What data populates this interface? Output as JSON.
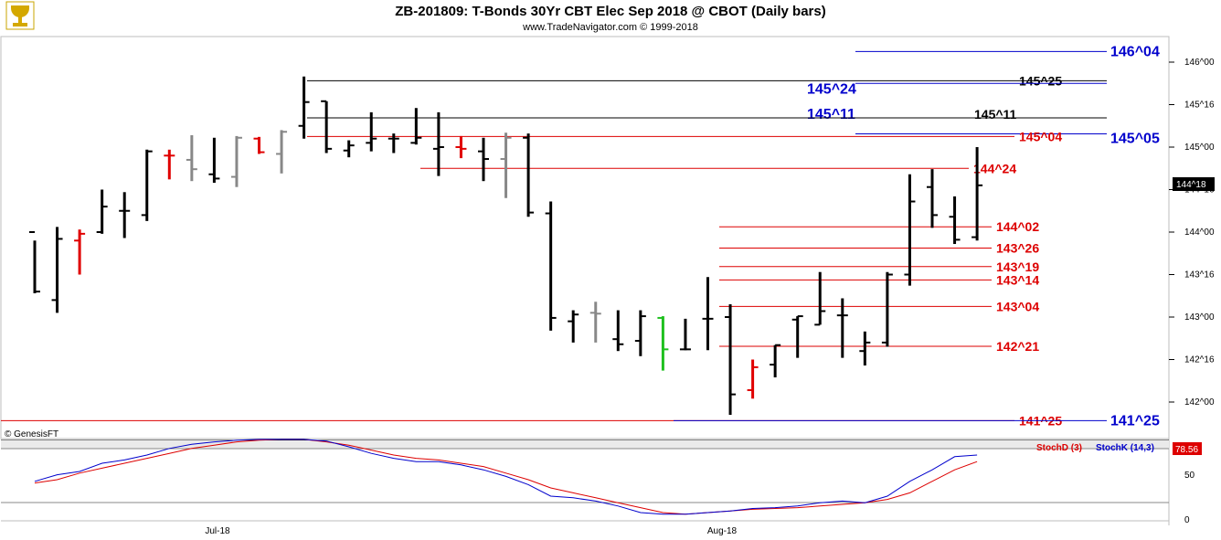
{
  "chart_data": {
    "type": "ohlc",
    "title": "ZB-201809:  T-Bonds 30Yr CBT Elec Sep 2018 @ CBOT  (Daily bars)",
    "subtitle": "www.TradeNavigator.com © 1999-2018",
    "copyright": "© GenesisFT",
    "x_labels": [
      "Jul-18",
      "Aug-18"
    ],
    "y_ticks": [
      "146^00",
      "145^16",
      "145^00",
      "144^16",
      "144^00",
      "143^16",
      "143^00",
      "142^16",
      "142^00"
    ],
    "last_price_label": "144^18",
    "colors": {
      "up": "#000000",
      "down_red": "#e00000",
      "neutral_gray": "#888888",
      "green": "#1fc01f"
    },
    "bars": [
      {
        "h": 143.9,
        "l": 143.28,
        "o": 144.0,
        "c": 143.3,
        "color": "black"
      },
      {
        "h": 144.06,
        "l": 143.05,
        "o": 143.2,
        "c": 143.92,
        "color": "black"
      },
      {
        "h": 144.03,
        "l": 143.5,
        "o": 143.9,
        "c": 143.98,
        "color": "red"
      },
      {
        "h": 144.5,
        "l": 143.98,
        "o": 144.0,
        "c": 144.3,
        "color": "black"
      },
      {
        "h": 144.47,
        "l": 143.93,
        "o": 144.25,
        "c": 144.25,
        "color": "black"
      },
      {
        "h": 144.97,
        "l": 144.13,
        "o": 144.2,
        "c": 144.95,
        "color": "black"
      },
      {
        "h": 144.97,
        "l": 144.62,
        "o": 144.9,
        "c": 144.9,
        "color": "red"
      },
      {
        "h": 145.14,
        "l": 144.6,
        "o": 144.85,
        "c": 144.74,
        "color": "gray"
      },
      {
        "h": 145.11,
        "l": 144.58,
        "o": 144.68,
        "c": 144.63,
        "color": "black"
      },
      {
        "h": 145.13,
        "l": 144.53,
        "o": 144.65,
        "c": 145.11,
        "color": "gray"
      },
      {
        "h": 145.12,
        "l": 144.92,
        "o": 145.1,
        "c": 144.94,
        "color": "red"
      },
      {
        "h": 145.2,
        "l": 144.69,
        "o": 144.92,
        "c": 145.18,
        "color": "gray"
      },
      {
        "h": 145.83,
        "l": 145.1,
        "o": 145.25,
        "c": 145.53,
        "color": "black"
      },
      {
        "h": 145.54,
        "l": 144.93,
        "o": 145.54,
        "c": 144.98,
        "color": "black"
      },
      {
        "h": 145.08,
        "l": 144.88,
        "o": 144.96,
        "c": 145.02,
        "color": "black"
      },
      {
        "h": 145.41,
        "l": 144.95,
        "o": 145.05,
        "c": 145.1,
        "color": "black"
      },
      {
        "h": 145.16,
        "l": 144.93,
        "o": 145.1,
        "c": 145.1,
        "color": "black"
      },
      {
        "h": 145.46,
        "l": 145.03,
        "o": 145.05,
        "c": 145.11,
        "color": "black"
      },
      {
        "h": 145.41,
        "l": 144.66,
        "o": 144.98,
        "c": 145.0,
        "color": "black"
      },
      {
        "h": 145.13,
        "l": 144.87,
        "o": 145.0,
        "c": 144.98,
        "color": "red"
      },
      {
        "h": 145.11,
        "l": 144.6,
        "o": 144.95,
        "c": 144.86,
        "color": "black"
      },
      {
        "h": 145.17,
        "l": 144.4,
        "o": 144.86,
        "c": 145.11,
        "color": "gray"
      },
      {
        "h": 145.16,
        "l": 144.18,
        "o": 145.11,
        "c": 144.23,
        "color": "black"
      },
      {
        "h": 144.36,
        "l": 142.84,
        "o": 144.22,
        "c": 142.99,
        "color": "black"
      },
      {
        "h": 143.08,
        "l": 142.7,
        "o": 142.95,
        "c": 143.03,
        "color": "black"
      },
      {
        "h": 143.18,
        "l": 142.7,
        "o": 143.05,
        "c": 143.04,
        "color": "gray"
      },
      {
        "h": 143.08,
        "l": 142.6,
        "o": 142.74,
        "c": 142.68,
        "color": "black"
      },
      {
        "h": 143.08,
        "l": 142.54,
        "o": 142.72,
        "c": 143.01,
        "color": "black"
      },
      {
        "h": 143.01,
        "l": 142.37,
        "o": 142.99,
        "c": 142.62,
        "color": "green"
      },
      {
        "h": 142.98,
        "l": 142.61,
        "o": 142.62,
        "c": 142.62,
        "color": "black"
      },
      {
        "h": 143.47,
        "l": 142.61,
        "o": 142.98,
        "c": 142.98,
        "color": "black"
      },
      {
        "h": 143.15,
        "l": 141.85,
        "o": 143.0,
        "c": 142.09,
        "color": "black"
      },
      {
        "h": 142.5,
        "l": 142.04,
        "o": 142.14,
        "c": 142.41,
        "color": "red"
      },
      {
        "h": 142.67,
        "l": 142.29,
        "o": 142.44,
        "c": 142.67,
        "color": "black"
      },
      {
        "h": 143.01,
        "l": 142.52,
        "o": 142.97,
        "c": 143.01,
        "color": "black"
      },
      {
        "h": 143.53,
        "l": 142.91,
        "o": 142.91,
        "c": 143.07,
        "color": "black"
      },
      {
        "h": 143.22,
        "l": 142.52,
        "o": 143.02,
        "c": 143.02,
        "color": "black"
      },
      {
        "h": 142.83,
        "l": 142.43,
        "o": 142.6,
        "c": 142.7,
        "color": "black"
      },
      {
        "h": 143.53,
        "l": 142.65,
        "o": 142.7,
        "c": 143.5,
        "color": "black"
      },
      {
        "h": 144.68,
        "l": 143.37,
        "o": 143.5,
        "c": 144.36,
        "color": "black"
      },
      {
        "h": 144.74,
        "l": 144.05,
        "o": 144.53,
        "c": 144.2,
        "color": "black"
      },
      {
        "h": 144.42,
        "l": 143.86,
        "o": 144.18,
        "c": 143.91,
        "color": "black"
      },
      {
        "h": 145.0,
        "l": 143.9,
        "o": 143.94,
        "c": 144.55,
        "color": "black"
      }
    ],
    "levels": [
      {
        "label": "146^04",
        "color": "#0000cc"
      },
      {
        "label": "145^25",
        "color": "#000000"
      },
      {
        "label": "145^24",
        "color": "#0000cc"
      },
      {
        "label": "145^11",
        "color": "#0000cc"
      },
      {
        "label": "145^11",
        "color": "#000000"
      },
      {
        "label": "145^05",
        "color": "#0000cc"
      },
      {
        "label": "145^04",
        "color": "#dd0000"
      },
      {
        "label": "144^24",
        "color": "#dd0000"
      },
      {
        "label": "144^02",
        "color": "#dd0000"
      },
      {
        "label": "143^26",
        "color": "#dd0000"
      },
      {
        "label": "143^19",
        "color": "#dd0000"
      },
      {
        "label": "143^14",
        "color": "#dd0000"
      },
      {
        "label": "143^04",
        "color": "#dd0000"
      },
      {
        "label": "142^21",
        "color": "#dd0000"
      },
      {
        "label": "141^25",
        "color": "#dd0000"
      },
      {
        "label": "141^25",
        "color": "#0000cc"
      }
    ],
    "stoch": {
      "d_label": "StochD (3)",
      "k_label": "StochK (14,3)",
      "last_value": "78.56",
      "y_ticks": [
        "50",
        "0"
      ],
      "d_color": "#dd0000",
      "k_color": "#0000cc",
      "k": [
        48,
        56,
        60,
        70,
        74,
        80,
        88,
        93,
        96,
        98,
        99,
        99,
        99,
        97,
        90,
        82,
        76,
        72,
        72,
        68,
        62,
        54,
        44,
        30,
        28,
        24,
        18,
        10,
        8,
        8,
        10,
        12,
        15,
        16,
        18,
        22,
        24,
        22,
        30,
        48,
        62,
        78,
        80
      ],
      "d": [
        46,
        50,
        58,
        64,
        70,
        76,
        82,
        88,
        92,
        96,
        98,
        99,
        99,
        96,
        92,
        86,
        80,
        76,
        74,
        70,
        66,
        58,
        50,
        40,
        34,
        28,
        22,
        16,
        10,
        8,
        10,
        12,
        14,
        15,
        16,
        18,
        20,
        22,
        26,
        34,
        48,
        62,
        72
      ]
    }
  }
}
